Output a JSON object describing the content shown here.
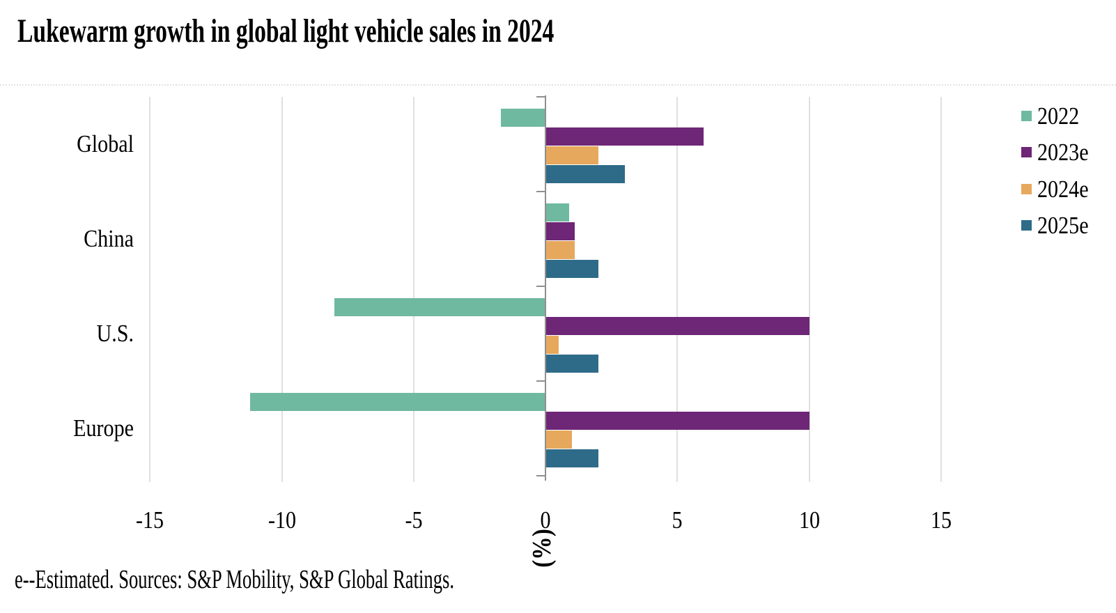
{
  "chart_data": {
    "type": "bar",
    "orientation": "horizontal",
    "title": "Lukewarm growth in global light vehicle sales in 2024",
    "xlabel": "(%)",
    "xlim": [
      -15,
      15
    ],
    "xticks": [
      -15,
      -10,
      -5,
      0,
      5,
      10,
      15
    ],
    "grid": "vertical-gridlines-at-ticks",
    "legend_position": "right",
    "categories": [
      "Global",
      "China",
      "U.S.",
      "Europe"
    ],
    "series": [
      {
        "name": "2022",
        "color": "#6FB9A1",
        "values": [
          -1.7,
          0.9,
          -8,
          -11.2
        ]
      },
      {
        "name": "2023e",
        "color": "#6E2677",
        "values": [
          6,
          1.1,
          10,
          10
        ]
      },
      {
        "name": "2024e",
        "color": "#E6A85C",
        "values": [
          2,
          1.1,
          0.5,
          1
        ]
      },
      {
        "name": "2025e",
        "color": "#2E6B88",
        "values": [
          3,
          2,
          2,
          2
        ]
      }
    ],
    "footnote": "e--Estimated. Sources: S&P Mobility, S&P Global Ratings."
  },
  "colors": {
    "background": "#FFFFFF",
    "axis_line": "#8F8F8F",
    "gridline": "#E0E0E0",
    "text": "#000000"
  }
}
